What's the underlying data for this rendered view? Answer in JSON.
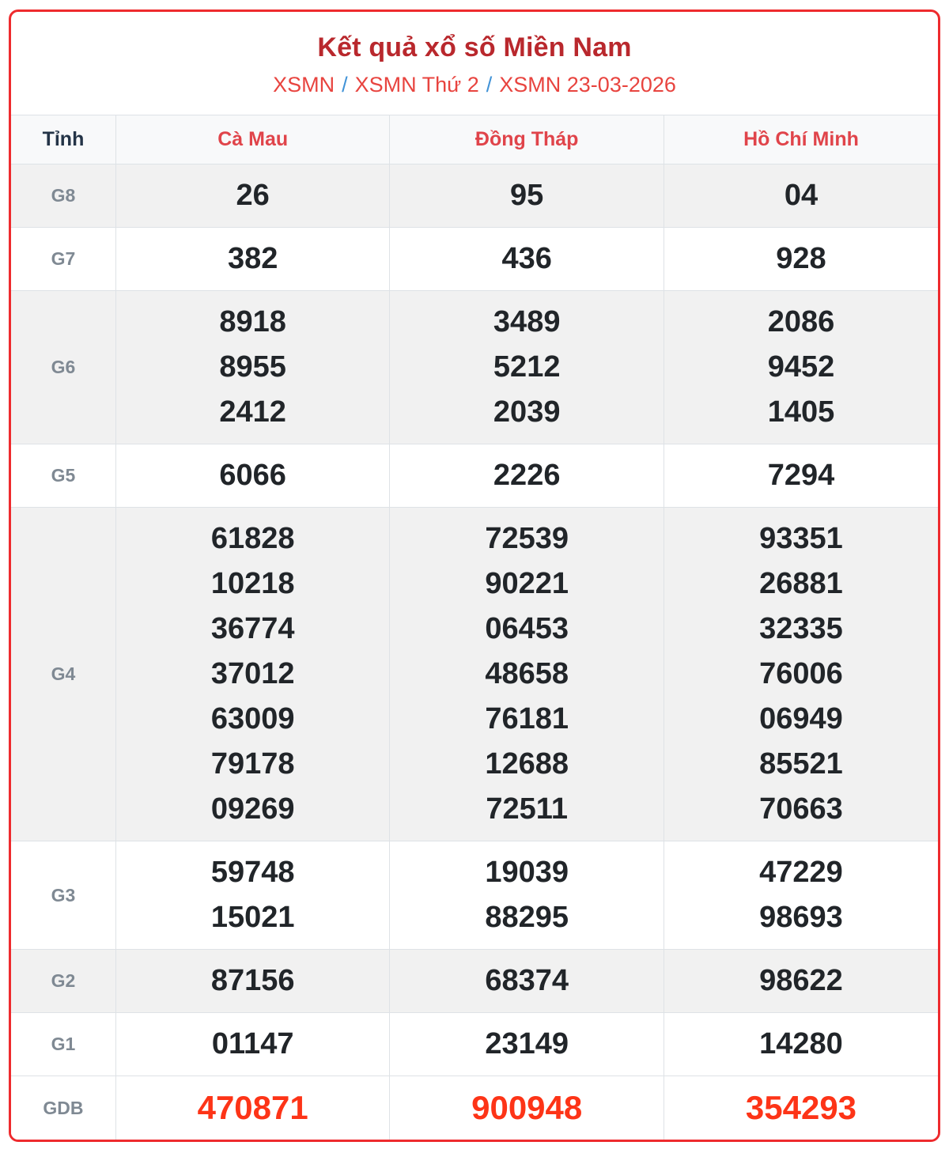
{
  "header": {
    "title": "Kết quả xổ số Miền Nam",
    "breadcrumb": [
      "XSMN",
      "XSMN Thứ 2",
      "XSMN 23-03-2026"
    ],
    "separator": "/"
  },
  "table": {
    "corner_label": "Tỉnh",
    "columns": [
      "Cà Mau",
      "Đồng Tháp",
      "Hồ Chí Minh"
    ],
    "rows": [
      {
        "label": "G8",
        "values": [
          [
            "26"
          ],
          [
            "95"
          ],
          [
            "04"
          ]
        ]
      },
      {
        "label": "G7",
        "values": [
          [
            "382"
          ],
          [
            "436"
          ],
          [
            "928"
          ]
        ]
      },
      {
        "label": "G6",
        "values": [
          [
            "8918",
            "8955",
            "2412"
          ],
          [
            "3489",
            "5212",
            "2039"
          ],
          [
            "2086",
            "9452",
            "1405"
          ]
        ]
      },
      {
        "label": "G5",
        "values": [
          [
            "6066"
          ],
          [
            "2226"
          ],
          [
            "7294"
          ]
        ]
      },
      {
        "label": "G4",
        "values": [
          [
            "61828",
            "10218",
            "36774",
            "37012",
            "63009",
            "79178",
            "09269"
          ],
          [
            "72539",
            "90221",
            "06453",
            "48658",
            "76181",
            "12688",
            "72511"
          ],
          [
            "93351",
            "26881",
            "32335",
            "76006",
            "06949",
            "85521",
            "70663"
          ]
        ]
      },
      {
        "label": "G3",
        "values": [
          [
            "59748",
            "15021"
          ],
          [
            "19039",
            "88295"
          ],
          [
            "47229",
            "98693"
          ]
        ]
      },
      {
        "label": "G2",
        "values": [
          [
            "87156"
          ],
          [
            "68374"
          ],
          [
            "98622"
          ]
        ]
      },
      {
        "label": "G1",
        "values": [
          [
            "01147"
          ],
          [
            "23149"
          ],
          [
            "14280"
          ]
        ]
      },
      {
        "label": "GDB",
        "values": [
          [
            "470871"
          ],
          [
            "900948"
          ],
          [
            "354293"
          ]
        ]
      }
    ]
  },
  "colors": {
    "accent_border": "#ee2b2e",
    "title": "#b9282d",
    "breadcrumb_link": "#e8443f",
    "breadcrumb_separator": "#4193d7",
    "column_header": "#e0444a",
    "prize_label": "#7f8993",
    "number": "#212529",
    "jackpot_number": "#fd3417"
  }
}
